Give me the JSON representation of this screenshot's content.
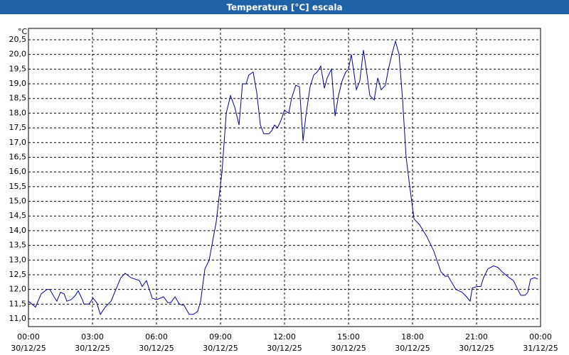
{
  "chart_data": {
    "type": "line",
    "title": "Temperatura [°C] escala",
    "y_unit": "°C",
    "color": "#0000a0",
    "grid": true,
    "xlim": [
      0,
      24
    ],
    "ylim": [
      11.0,
      20.5
    ],
    "xticks": [
      {
        "value": 0,
        "label": "00:00",
        "date": "30/12/25"
      },
      {
        "value": 3,
        "label": "03:00",
        "date": "30/12/25"
      },
      {
        "value": 6,
        "label": "06:00",
        "date": "30/12/25"
      },
      {
        "value": 9,
        "label": "09:00",
        "date": "30/12/25"
      },
      {
        "value": 12,
        "label": "12:00",
        "date": "30/12/25"
      },
      {
        "value": 15,
        "label": "15:00",
        "date": "30/12/25"
      },
      {
        "value": 18,
        "label": "18:00",
        "date": "30/12/25"
      },
      {
        "value": 21,
        "label": "21:00",
        "date": "30/12/25"
      },
      {
        "value": 24,
        "label": "00:00",
        "date": "31/12/25"
      }
    ],
    "yticks": [
      {
        "value": 11.0,
        "label": "11,0"
      },
      {
        "value": 11.5,
        "label": "11,5"
      },
      {
        "value": 12.0,
        "label": "12,0"
      },
      {
        "value": 12.5,
        "label": "12,5"
      },
      {
        "value": 13.0,
        "label": "13,0"
      },
      {
        "value": 13.5,
        "label": "13,5"
      },
      {
        "value": 14.0,
        "label": "14,0"
      },
      {
        "value": 14.5,
        "label": "14,5"
      },
      {
        "value": 15.0,
        "label": "15,0"
      },
      {
        "value": 15.5,
        "label": "15,5"
      },
      {
        "value": 16.0,
        "label": "16,0"
      },
      {
        "value": 16.5,
        "label": "16,5"
      },
      {
        "value": 17.0,
        "label": "17,0"
      },
      {
        "value": 17.5,
        "label": "17,5"
      },
      {
        "value": 18.0,
        "label": "18,0"
      },
      {
        "value": 18.5,
        "label": "18,5"
      },
      {
        "value": 19.0,
        "label": "19,0"
      },
      {
        "value": 19.5,
        "label": "19,5"
      },
      {
        "value": 20.0,
        "label": "20,0"
      },
      {
        "value": 20.5,
        "label": "20,5"
      }
    ],
    "x": [
      0,
      0.33,
      0.6,
      0.87,
      1.0,
      1.2,
      1.33,
      1.5,
      1.67,
      1.8,
      2.0,
      2.2,
      2.33,
      2.53,
      2.6,
      2.83,
      3.03,
      3.2,
      3.37,
      3.6,
      3.87,
      4.1,
      4.33,
      4.53,
      4.8,
      5.2,
      5.33,
      5.53,
      5.8,
      6.0,
      6.33,
      6.53,
      6.67,
      6.87,
      7.07,
      7.3,
      7.53,
      7.73,
      7.93,
      8.07,
      8.27,
      8.47,
      8.8,
      9.07,
      9.27,
      9.47,
      9.67,
      9.87,
      10.03,
      10.2,
      10.33,
      10.53,
      10.7,
      10.87,
      11.03,
      11.27,
      11.4,
      11.53,
      11.67,
      11.83,
      12.0,
      12.2,
      12.33,
      12.53,
      12.7,
      12.87,
      13.0,
      13.2,
      13.37,
      13.53,
      13.7,
      13.87,
      14.0,
      14.2,
      14.37,
      14.53,
      14.7,
      14.87,
      15.0,
      15.13,
      15.37,
      15.53,
      15.7,
      15.87,
      16.0,
      16.2,
      16.37,
      16.53,
      16.73,
      16.87,
      17.03,
      17.2,
      17.37,
      17.53,
      17.7,
      17.87,
      18.07,
      18.33,
      18.67,
      19.0,
      19.33,
      19.53,
      19.67,
      19.87,
      20.03,
      20.33,
      20.53,
      20.7,
      20.8,
      21.03,
      21.2,
      21.33,
      21.53,
      21.8,
      22.0,
      22.2,
      22.53,
      22.73,
      22.93,
      23.07,
      23.27,
      23.4,
      23.53,
      23.73,
      23.87
    ],
    "values": [
      11.6,
      11.4,
      11.85,
      12.0,
      12.0,
      11.75,
      11.6,
      11.9,
      11.85,
      11.6,
      11.65,
      11.8,
      11.95,
      11.65,
      11.5,
      11.5,
      11.7,
      11.55,
      11.15,
      11.4,
      11.6,
      12.0,
      12.4,
      12.55,
      12.4,
      12.3,
      12.1,
      12.3,
      11.7,
      11.65,
      11.75,
      11.55,
      11.55,
      11.75,
      11.5,
      11.45,
      11.15,
      11.15,
      11.25,
      11.6,
      12.7,
      13.0,
      14.3,
      16.0,
      18.0,
      18.6,
      18.2,
      17.6,
      19.0,
      19.0,
      19.3,
      19.4,
      18.7,
      17.6,
      17.3,
      17.3,
      17.4,
      17.6,
      17.5,
      17.75,
      18.1,
      18.0,
      18.5,
      18.95,
      18.9,
      17.05,
      17.9,
      18.9,
      19.3,
      19.4,
      19.6,
      18.85,
      19.2,
      19.5,
      17.9,
      18.6,
      19.1,
      19.4,
      19.5,
      20.0,
      18.8,
      19.1,
      20.15,
      19.3,
      18.6,
      18.45,
      19.2,
      18.8,
      18.95,
      19.5,
      20.0,
      20.45,
      20.0,
      18.5,
      16.5,
      15.5,
      14.4,
      14.2,
      13.8,
      13.3,
      12.6,
      12.45,
      12.45,
      12.2,
      12.0,
      11.9,
      11.75,
      11.6,
      12.05,
      12.1,
      12.1,
      12.4,
      12.7,
      12.8,
      12.75,
      12.6,
      12.4,
      12.3,
      12.0,
      11.8,
      11.8,
      11.9,
      12.35,
      12.4,
      12.35
    ]
  }
}
